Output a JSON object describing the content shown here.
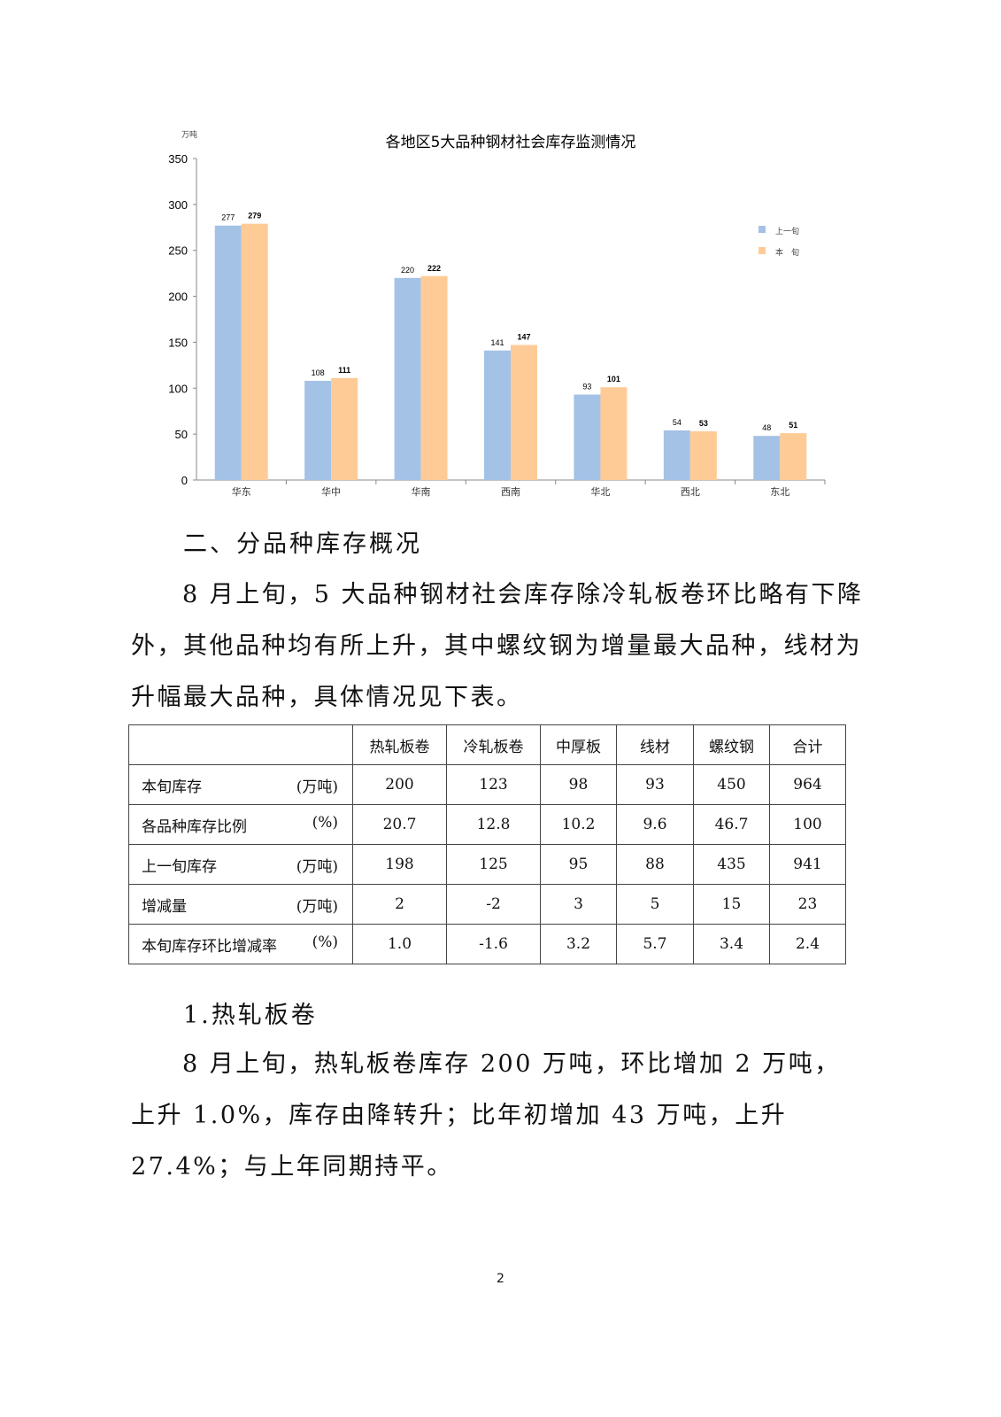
{
  "chart_data": {
    "type": "bar",
    "title": "各地区5大品种钢材社会库存监测情况",
    "ylabel": "万吨",
    "ylim": [
      0,
      350
    ],
    "yticks": [
      0,
      50,
      100,
      150,
      200,
      250,
      300,
      350
    ],
    "categories": [
      "华东",
      "华中",
      "华南",
      "西南",
      "华北",
      "西北",
      "东北"
    ],
    "series": [
      {
        "name": "上一旬",
        "color": "#A4C2E6",
        "values": [
          277,
          108,
          220,
          141,
          93,
          54,
          48
        ]
      },
      {
        "name": "本　旬",
        "color": "#FECB97",
        "values": [
          279,
          111,
          222,
          147,
          101,
          53,
          51
        ]
      }
    ],
    "legend": "right",
    "grid": false
  },
  "section2": {
    "heading": "二、分品种库存概况",
    "paragraph": "8 月上旬，5 大品种钢材社会库存除冷轧板卷环比略有下降外，其他品种均有所上升，其中螺纹钢为增量最大品种，线材为升幅最大品种，具体情况见下表。"
  },
  "table": {
    "headers": [
      "",
      "热轧板卷",
      "冷轧板卷",
      "中厚板",
      "线材",
      "螺纹钢",
      "合计"
    ],
    "rows": [
      {
        "label": "本旬库存",
        "unit": "(万吨)",
        "cells": [
          "200",
          "123",
          "98",
          "93",
          "450",
          "964"
        ]
      },
      {
        "label": "各品种库存比例",
        "unit": "(%)",
        "cells": [
          "20.7",
          "12.8",
          "10.2",
          "9.6",
          "46.7",
          "100"
        ]
      },
      {
        "label": "上一旬库存",
        "unit": "(万吨)",
        "cells": [
          "198",
          "125",
          "95",
          "88",
          "435",
          "941"
        ]
      },
      {
        "label": "增减量",
        "unit": "(万吨)",
        "cells": [
          "2",
          "-2",
          "3",
          "5",
          "15",
          "23"
        ]
      },
      {
        "label": "本旬库存环比增减率",
        "unit": "(%)",
        "cells": [
          "1.0",
          "-1.6",
          "3.2",
          "5.7",
          "3.4",
          "2.4"
        ]
      }
    ]
  },
  "section_hrc": {
    "heading": "1.热轧板卷",
    "paragraph": "8 月上旬，热轧板卷库存 200 万吨，环比增加 2 万吨，上升 1.0%，库存由降转升；比年初增加 43 万吨，上升 27.4%；与上年同期持平。"
  },
  "page_number": "2"
}
